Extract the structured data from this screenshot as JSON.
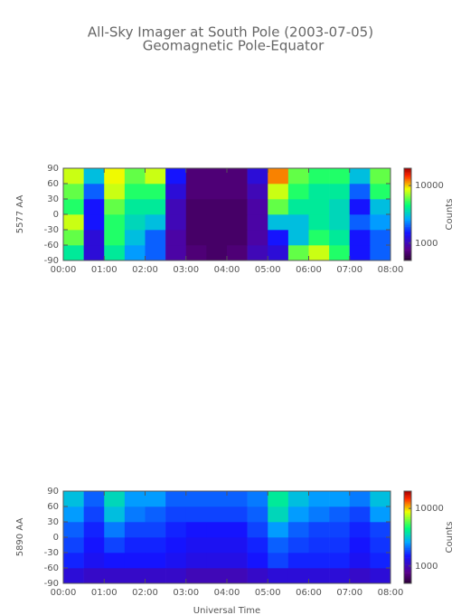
{
  "title": "All-Sky Imager at South Pole (2003-07-05)",
  "subtitle": "Geomagnetic Pole-Equator",
  "chart_data": [
    {
      "type": "heatmap",
      "y_label": "5577 AA",
      "colorbar_label": "Counts",
      "xlim": [
        0,
        8
      ],
      "xticks": [
        {
          "value": 0,
          "label": "00:00"
        },
        {
          "value": 1,
          "label": "01:00"
        },
        {
          "value": 2,
          "label": "02:00"
        },
        {
          "value": 3,
          "label": "03:00"
        },
        {
          "value": 4,
          "label": "04:00"
        },
        {
          "value": 5,
          "label": "05:00"
        },
        {
          "value": 6,
          "label": "06:00"
        },
        {
          "value": 7,
          "label": "07:00"
        },
        {
          "value": 8,
          "label": "08:00"
        }
      ],
      "ylim": [
        -90,
        90
      ],
      "yticks": [
        -90,
        -60,
        -30,
        0,
        30,
        60,
        90
      ],
      "x_edges": [
        0,
        0.5,
        1,
        1.5,
        2,
        2.5,
        3,
        3.5,
        4,
        4.5,
        5,
        5.5,
        6,
        6.5,
        7,
        7.5,
        8
      ],
      "y_edges": [
        -90,
        -60,
        -30,
        0,
        30,
        60,
        90
      ],
      "clim": [
        500,
        20000
      ],
      "cticks": [
        1000,
        10000
      ],
      "color_log": true,
      "values": [
        [
          4000,
          1200,
          4000,
          2500,
          2000,
          900,
          700,
          650,
          700,
          1000,
          1200,
          6000,
          8000,
          5000,
          1500,
          2000
        ],
        [
          6000,
          1200,
          5000,
          3000,
          2000,
          900,
          650,
          650,
          650,
          900,
          1500,
          3000,
          5000,
          4000,
          1500,
          2000
        ],
        [
          8000,
          1500,
          5000,
          3500,
          3000,
          1000,
          650,
          650,
          650,
          900,
          3000,
          3000,
          4000,
          3500,
          2000,
          2500
        ],
        [
          5000,
          1500,
          6000,
          4000,
          4000,
          1000,
          650,
          650,
          650,
          900,
          6000,
          4000,
          4000,
          3500,
          1500,
          3000
        ],
        [
          6000,
          2000,
          8000,
          5000,
          5000,
          1200,
          700,
          700,
          700,
          1000,
          8000,
          5000,
          4000,
          4000,
          2000,
          5000
        ],
        [
          8000,
          3000,
          9000,
          6000,
          8000,
          1500,
          700,
          700,
          700,
          1200,
          12000,
          6000,
          5000,
          5000,
          3000,
          6000
        ]
      ]
    },
    {
      "type": "heatmap",
      "y_label": "5890 AA",
      "colorbar_label": "Counts",
      "x_label": "Universal Time",
      "xlim": [
        0,
        8
      ],
      "xticks": [
        {
          "value": 0,
          "label": "00:00"
        },
        {
          "value": 1,
          "label": "01:00"
        },
        {
          "value": 2,
          "label": "02:00"
        },
        {
          "value": 3,
          "label": "03:00"
        },
        {
          "value": 4,
          "label": "04:00"
        },
        {
          "value": 5,
          "label": "05:00"
        },
        {
          "value": 6,
          "label": "06:00"
        },
        {
          "value": 7,
          "label": "07:00"
        },
        {
          "value": 8,
          "label": "08:00"
        }
      ],
      "ylim": [
        -90,
        90
      ],
      "yticks": [
        -90,
        -60,
        -30,
        0,
        30,
        60,
        90
      ],
      "x_edges": [
        0,
        0.5,
        1,
        1.5,
        2,
        2.5,
        3,
        3.5,
        4,
        4.5,
        5,
        5.5,
        6,
        6.5,
        7,
        7.5,
        8
      ],
      "y_edges": [
        -90,
        -60,
        -30,
        0,
        30,
        60,
        90
      ],
      "clim": [
        500,
        20000
      ],
      "cticks": [
        1000,
        10000
      ],
      "color_log": true,
      "values": [
        [
          1200,
          1100,
          1100,
          1100,
          1100,
          1100,
          1000,
          1000,
          1000,
          1100,
          1200,
          1200,
          1200,
          1200,
          1100,
          1200
        ],
        [
          1600,
          1400,
          1500,
          1500,
          1500,
          1400,
          1300,
          1300,
          1300,
          1500,
          1800,
          1600,
          1600,
          1600,
          1400,
          1600
        ],
        [
          1800,
          1500,
          1800,
          1600,
          1600,
          1500,
          1400,
          1400,
          1400,
          1600,
          2000,
          1800,
          1700,
          1700,
          1500,
          1700
        ],
        [
          2000,
          1600,
          2200,
          1800,
          1800,
          1600,
          1500,
          1500,
          1500,
          1800,
          2500,
          2000,
          1800,
          1800,
          1600,
          1800
        ],
        [
          2500,
          1800,
          3000,
          2200,
          2000,
          1800,
          1800,
          1800,
          1800,
          2000,
          3500,
          2500,
          2200,
          2000,
          1800,
          2500
        ],
        [
          3000,
          2000,
          3500,
          2500,
          2500,
          2000,
          2000,
          2000,
          2000,
          2200,
          4000,
          3000,
          2500,
          2500,
          2200,
          3000
        ]
      ]
    }
  ]
}
